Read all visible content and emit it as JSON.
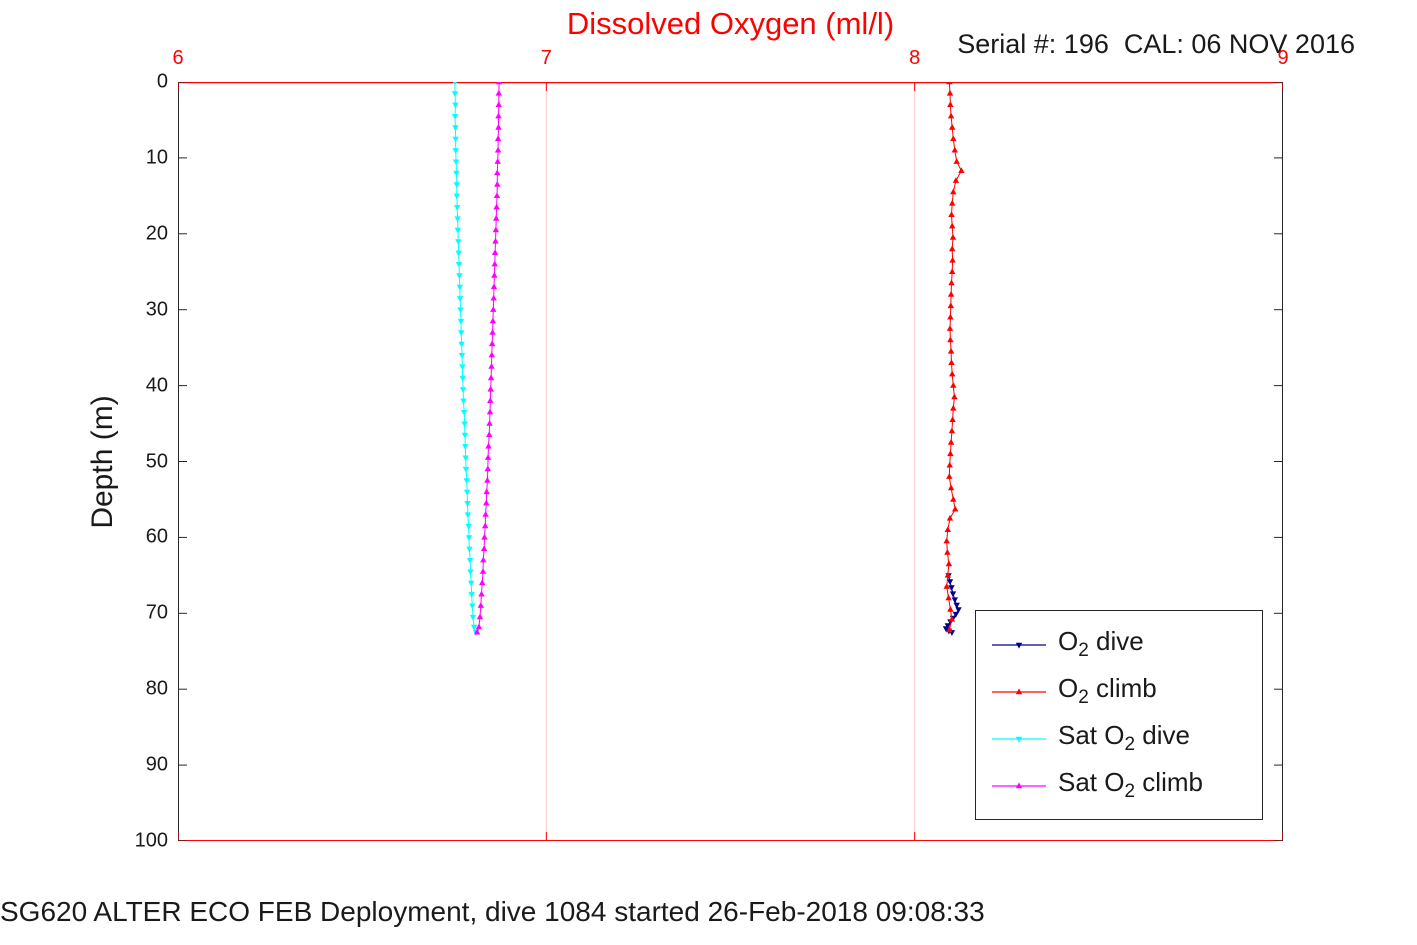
{
  "figure": {
    "title": "Dissolved Oxygen (ml/l)",
    "subtitle": "Serial #: 196  CAL: 06 NOV 2016",
    "caption": "SG620 ALTER ECO FEB Deployment, dive 1084 started 26-Feb-2018 09:08:33",
    "ylabel": "Depth (m)",
    "colors": {
      "axis_x": "#ff0000",
      "axis_y": "#262626",
      "grid": "#ffc9c9",
      "o2_dive": "#00008b",
      "o2_climb": "#ff0000",
      "sat_o2_dive": "#00ffff",
      "sat_o2_climb": "#ff00ff",
      "legend_border": "#262626",
      "text": "#1a1a1a"
    }
  },
  "legend": {
    "items": [
      {
        "pre": "O",
        "sub": "2",
        "post": " dive"
      },
      {
        "pre": "O",
        "sub": "2",
        "post": " climb"
      },
      {
        "pre": "Sat O",
        "sub": "2",
        "post": " dive"
      },
      {
        "pre": "Sat O",
        "sub": "2",
        "post": " climb"
      }
    ]
  },
  "chart_data": {
    "type": "line",
    "title": "Dissolved Oxygen (ml/l)",
    "xlabel": "Dissolved Oxygen (ml/l)",
    "ylabel": "Depth (m)",
    "xlim": [
      6,
      9
    ],
    "ylim": [
      0,
      100
    ],
    "x_axis_location": "top",
    "y_axis_direction": "reverse (depth increases downward)",
    "grid_x": true,
    "grid_y": false,
    "legend_position": "inside lower right",
    "xticks": [
      6,
      7,
      8,
      9
    ],
    "yticks": [
      0,
      10,
      20,
      30,
      40,
      50,
      60,
      70,
      80,
      90,
      100
    ],
    "series": [
      {
        "name": "O2 dive",
        "color": "#00008b",
        "marker": "triangle-down",
        "points": [
          [
            8.092,
            65
          ],
          [
            8.096,
            65.8
          ],
          [
            8.1,
            66.6
          ],
          [
            8.104,
            67.4
          ],
          [
            8.109,
            68.2
          ],
          [
            8.114,
            68.9
          ],
          [
            8.119,
            69.5
          ],
          [
            8.112,
            70.1
          ],
          [
            8.104,
            70.6
          ],
          [
            8.097,
            71.1
          ],
          [
            8.09,
            71.6
          ],
          [
            8.085,
            72.0
          ],
          [
            8.093,
            72.3
          ],
          [
            8.101,
            72.5
          ]
        ]
      },
      {
        "name": "O2 climb",
        "color": "#ff0000",
        "marker": "triangle-up",
        "points": [
          [
            8.094,
            0
          ],
          [
            8.096,
            1.5
          ],
          [
            8.097,
            3
          ],
          [
            8.099,
            4.5
          ],
          [
            8.102,
            6
          ],
          [
            8.105,
            7.5
          ],
          [
            8.109,
            9
          ],
          [
            8.114,
            10.5
          ],
          [
            8.127,
            11.7
          ],
          [
            8.112,
            13
          ],
          [
            8.105,
            14.5
          ],
          [
            8.102,
            16
          ],
          [
            8.1,
            17.5
          ],
          [
            8.102,
            19
          ],
          [
            8.104,
            20.5
          ],
          [
            8.102,
            22
          ],
          [
            8.103,
            23.5
          ],
          [
            8.102,
            25
          ],
          [
            8.1,
            26.5
          ],
          [
            8.099,
            28
          ],
          [
            8.098,
            29.5
          ],
          [
            8.097,
            31
          ],
          [
            8.096,
            32.5
          ],
          [
            8.097,
            34
          ],
          [
            8.099,
            35.5
          ],
          [
            8.1,
            37
          ],
          [
            8.102,
            38.5
          ],
          [
            8.105,
            40
          ],
          [
            8.108,
            41.5
          ],
          [
            8.105,
            43
          ],
          [
            8.103,
            44.5
          ],
          [
            8.101,
            46
          ],
          [
            8.099,
            47.5
          ],
          [
            8.097,
            49
          ],
          [
            8.095,
            50.5
          ],
          [
            8.094,
            52
          ],
          [
            8.099,
            53.5
          ],
          [
            8.105,
            55
          ],
          [
            8.11,
            56.3
          ],
          [
            8.096,
            57.5
          ],
          [
            8.09,
            59
          ],
          [
            8.087,
            60.5
          ],
          [
            8.089,
            62
          ],
          [
            8.093,
            63.5
          ],
          [
            8.09,
            65
          ],
          [
            8.087,
            66.5
          ],
          [
            8.092,
            68
          ],
          [
            8.097,
            69.5
          ],
          [
            8.101,
            70.8
          ],
          [
            8.094,
            72.2
          ]
        ]
      },
      {
        "name": "Sat O2 dive",
        "color": "#00ffff",
        "marker": "triangle-down",
        "points": [
          [
            6.752,
            0
          ],
          [
            6.752,
            1.5
          ],
          [
            6.753,
            3
          ],
          [
            6.752,
            4.5
          ],
          [
            6.753,
            6
          ],
          [
            6.754,
            7.5
          ],
          [
            6.754,
            9
          ],
          [
            6.755,
            10.5
          ],
          [
            6.756,
            12
          ],
          [
            6.757,
            13.5
          ],
          [
            6.757,
            15
          ],
          [
            6.758,
            16.5
          ],
          [
            6.759,
            18
          ],
          [
            6.76,
            19.5
          ],
          [
            6.761,
            21
          ],
          [
            6.762,
            22.5
          ],
          [
            6.763,
            24
          ],
          [
            6.764,
            25.5
          ],
          [
            6.765,
            27
          ],
          [
            6.766,
            28.5
          ],
          [
            6.767,
            30
          ],
          [
            6.768,
            31.5
          ],
          [
            6.769,
            33
          ],
          [
            6.77,
            34.5
          ],
          [
            6.771,
            36
          ],
          [
            6.772,
            37.5
          ],
          [
            6.773,
            39
          ],
          [
            6.774,
            40.5
          ],
          [
            6.775,
            42
          ],
          [
            6.777,
            43.5
          ],
          [
            6.778,
            45
          ],
          [
            6.779,
            46.5
          ],
          [
            6.78,
            48
          ],
          [
            6.781,
            49.5
          ],
          [
            6.782,
            51
          ],
          [
            6.784,
            52.5
          ],
          [
            6.785,
            54
          ],
          [
            6.786,
            55.5
          ],
          [
            6.787,
            57
          ],
          [
            6.789,
            58.5
          ],
          [
            6.79,
            60
          ],
          [
            6.791,
            61.5
          ],
          [
            6.793,
            63
          ],
          [
            6.794,
            64.5
          ],
          [
            6.796,
            66
          ],
          [
            6.797,
            67.5
          ],
          [
            6.799,
            69
          ],
          [
            6.801,
            70.5
          ],
          [
            6.804,
            71.8
          ],
          [
            6.809,
            72.5
          ]
        ]
      },
      {
        "name": "Sat O2 climb",
        "color": "#ff00ff",
        "marker": "triangle-up",
        "points": [
          [
            6.872,
            0
          ],
          [
            6.871,
            1.5
          ],
          [
            6.871,
            3
          ],
          [
            6.87,
            4.5
          ],
          [
            6.87,
            6
          ],
          [
            6.869,
            7.5
          ],
          [
            6.869,
            9
          ],
          [
            6.868,
            10.5
          ],
          [
            6.867,
            12
          ],
          [
            6.867,
            13.5
          ],
          [
            6.866,
            15
          ],
          [
            6.865,
            16.5
          ],
          [
            6.864,
            18
          ],
          [
            6.863,
            19.5
          ],
          [
            6.862,
            21
          ],
          [
            6.861,
            22.5
          ],
          [
            6.86,
            24
          ],
          [
            6.859,
            25.5
          ],
          [
            6.858,
            27
          ],
          [
            6.857,
            28.5
          ],
          [
            6.856,
            30
          ],
          [
            6.855,
            31.5
          ],
          [
            6.854,
            33
          ],
          [
            6.853,
            34.5
          ],
          [
            6.852,
            36
          ],
          [
            6.851,
            37.5
          ],
          [
            6.85,
            39
          ],
          [
            6.849,
            40.5
          ],
          [
            6.848,
            42
          ],
          [
            6.847,
            43.5
          ],
          [
            6.846,
            45
          ],
          [
            6.845,
            46.5
          ],
          [
            6.843,
            48
          ],
          [
            6.842,
            49.5
          ],
          [
            6.841,
            51
          ],
          [
            6.84,
            52.5
          ],
          [
            6.838,
            54
          ],
          [
            6.837,
            55.5
          ],
          [
            6.835,
            57
          ],
          [
            6.834,
            58.5
          ],
          [
            6.832,
            60
          ],
          [
            6.831,
            61.5
          ],
          [
            6.829,
            63
          ],
          [
            6.828,
            64.5
          ],
          [
            6.826,
            66
          ],
          [
            6.824,
            67.5
          ],
          [
            6.822,
            69
          ],
          [
            6.82,
            70.5
          ],
          [
            6.817,
            71.8
          ],
          [
            6.812,
            72.5
          ]
        ]
      }
    ]
  }
}
